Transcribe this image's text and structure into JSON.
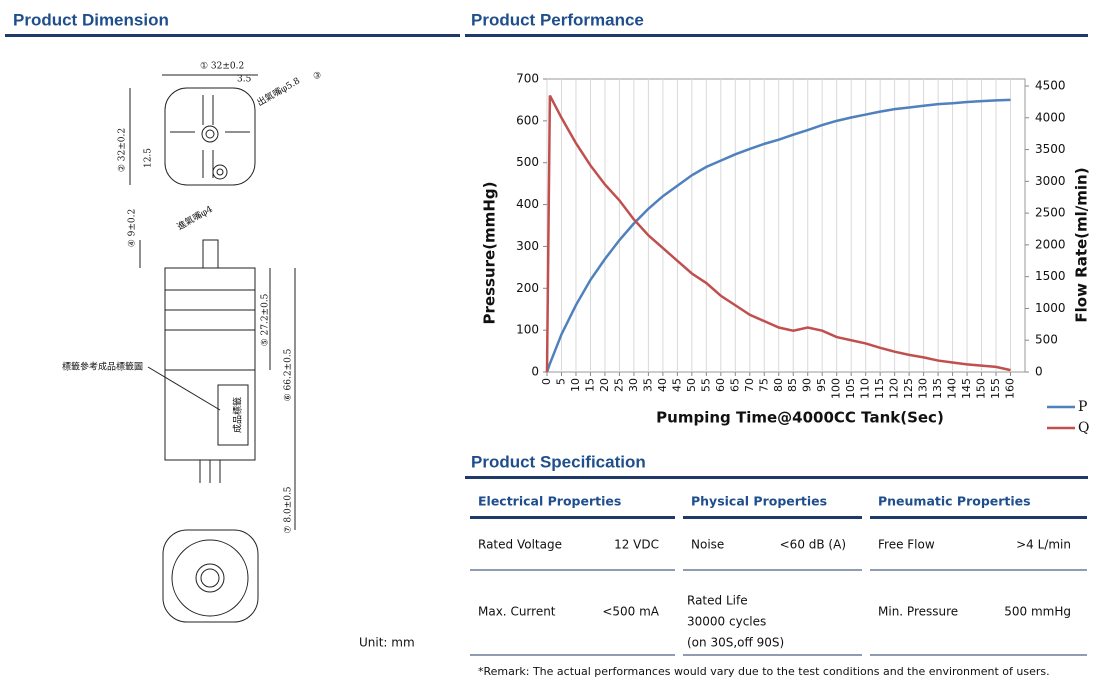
{
  "dimension": {
    "title": "Product Dimension",
    "labels": [
      "① 32±0.2",
      "3.5",
      "出氣嘴φ5.8",
      "③",
      "② 32±0.2",
      "12.5",
      "進氣嘴φ4",
      "④ 9±0.2",
      "⑤ 27.2±0.5",
      "⑥ 66.2±0.5",
      "⑦ 8.0±0.5",
      "標籤參考成品標籤圖",
      "成品標籤"
    ],
    "unit": "Unit: mm"
  },
  "performance": {
    "title": "Product Performance"
  },
  "chart_data": {
    "type": "line",
    "x_label": "Pumping Time@4000CC Tank(Sec)",
    "y_label": "Pressure(mmHg)",
    "y2_label": "Flow Rate(ml/min)",
    "x": [
      0,
      1,
      5,
      10,
      15,
      20,
      25,
      30,
      35,
      40,
      45,
      50,
      55,
      60,
      65,
      70,
      75,
      80,
      85,
      90,
      95,
      100,
      105,
      110,
      115,
      120,
      125,
      130,
      135,
      140,
      145,
      150,
      155,
      160
    ],
    "series": [
      {
        "name": "P",
        "color": "#4f81bd",
        "values": [
          0,
          20,
          90,
          160,
          220,
          270,
          315,
          355,
          390,
          420,
          445,
          470,
          490,
          505,
          520,
          533,
          545,
          555,
          567,
          578,
          590,
          600,
          608,
          615,
          622,
          628,
          632,
          636,
          640,
          642,
          645,
          647,
          649,
          650
        ]
      },
      {
        "name": "Q",
        "color": "#c0504d",
        "axis": "y2",
        "values": [
          0,
          4350,
          4000,
          3600,
          3250,
          2950,
          2700,
          2400,
          2150,
          1950,
          1750,
          1550,
          1400,
          1200,
          1050,
          900,
          800,
          700,
          650,
          700,
          650,
          550,
          500,
          450,
          380,
          320,
          270,
          230,
          180,
          150,
          120,
          100,
          80,
          30
        ]
      }
    ],
    "xlim": [
      0,
      165
    ],
    "xticks": [
      0,
      5,
      10,
      15,
      20,
      25,
      30,
      35,
      40,
      45,
      50,
      55,
      60,
      65,
      70,
      75,
      80,
      85,
      90,
      95,
      100,
      105,
      110,
      115,
      120,
      125,
      130,
      135,
      140,
      145,
      150,
      155,
      160
    ],
    "ylim": [
      0,
      700
    ],
    "yticks": [
      0,
      100,
      200,
      300,
      400,
      500,
      600,
      700
    ],
    "y2lim": [
      0,
      4500
    ],
    "y2ticks": [
      0,
      500,
      1000,
      1500,
      2000,
      2500,
      3000,
      3500,
      4000,
      4500
    ],
    "grid": true,
    "legend": "bottom-right"
  },
  "specification": {
    "title": "Product Specification",
    "groups": [
      {
        "name": "Electrical Properties",
        "rows": [
          [
            "Rated Voltage",
            "12 VDC"
          ],
          [
            "Max. Current",
            "<500 mA"
          ]
        ]
      },
      {
        "name": "Physical Properties",
        "rows": [
          [
            "Noise",
            "<60 dB (A)"
          ],
          [
            "Rated Life",
            "30000 cycles",
            "(on 30S,off 90S)"
          ]
        ]
      },
      {
        "name": "Pneumatic Properties",
        "rows": [
          [
            "Free Flow",
            ">4 L/min"
          ],
          [
            "Min. Pressure",
            "500 mmHg"
          ]
        ]
      }
    ],
    "remark": "*Remark: The actual performances would vary due to the test conditions and the environment of users."
  }
}
